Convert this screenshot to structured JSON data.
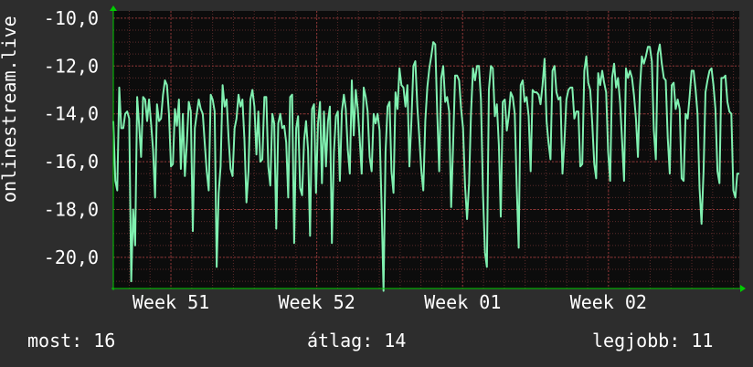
{
  "chart_data": {
    "type": "line",
    "ylabel": "onlinestream.live",
    "ylim": [
      -21.3,
      -9.7
    ],
    "yticks": [
      -10.0,
      -12.0,
      -14.0,
      -16.0,
      -18.0,
      -20.0
    ],
    "ytick_labels": [
      "-10,0",
      "-12,0",
      "-14,0",
      "-16,0",
      "-18,0",
      "-20,0"
    ],
    "xticks": [
      "Week 51",
      "Week 52",
      "Week 01",
      "Week 02"
    ],
    "grid": true,
    "colors": {
      "line": "#80f0b0",
      "background": "#0c0c0c",
      "grid": "#7a3030",
      "axis": "#00cc00"
    },
    "series": [
      {
        "values": [
          -14.3,
          -16.8,
          -17.2,
          -12.9,
          -14.6,
          -14.6,
          -14.0,
          -13.9,
          -14.2,
          -21.0,
          -18.0,
          -19.5,
          -13.3,
          -14.5,
          -15.8,
          -13.3,
          -13.4,
          -14.3,
          -13.4,
          -14.4,
          -15.5,
          -17.5,
          -13.6,
          -14.3,
          -14.2,
          -13.2,
          -12.6,
          -12.8,
          -14.0,
          -16.2,
          -16.1,
          -13.8,
          -14.5,
          -13.4,
          -16.3,
          -14.0,
          -16.6,
          -15.2,
          -13.5,
          -13.9,
          -18.9,
          -14.6,
          -14.0,
          -13.4,
          -13.8,
          -14.0,
          -15.2,
          -16.4,
          -17.2,
          -13.2,
          -13.4,
          -13.9,
          -20.4,
          -17.3,
          -16.2,
          -12.8,
          -13.7,
          -13.4,
          -15.0,
          -16.3,
          -16.6,
          -14.6,
          -14.2,
          -13.2,
          -13.7,
          -13.4,
          -15.1,
          -17.7,
          -16.4,
          -13.4,
          -13.0,
          -13.7,
          -15.7,
          -13.9,
          -16.0,
          -15.9,
          -13.3,
          -13.3,
          -16.2,
          -17.0,
          -14.0,
          -14.4,
          -18.8,
          -14.4,
          -14.0,
          -14.6,
          -14.5,
          -15.2,
          -17.5,
          -13.3,
          -13.2,
          -19.4,
          -14.6,
          -14.1,
          -17.1,
          -17.4,
          -15.1,
          -14.3,
          -15.5,
          -19.1,
          -13.8,
          -13.6,
          -17.3,
          -14.4,
          -13.5,
          -16.9,
          -13.9,
          -16.2,
          -14.3,
          -13.7,
          -19.4,
          -15.6,
          -14.1,
          -13.9,
          -16.8,
          -13.9,
          -13.2,
          -13.8,
          -15.5,
          -16.5,
          -12.6,
          -14.9,
          -13.0,
          -13.8,
          -15.1,
          -16.5,
          -12.9,
          -13.3,
          -13.9,
          -15.8,
          -16.4,
          -14.0,
          -14.4,
          -14.0,
          -14.7,
          -17.9,
          -21.4,
          -15.6,
          -13.7,
          -13.5,
          -16.4,
          -17.3,
          -13.1,
          -13.8,
          -12.1,
          -12.8,
          -12.9,
          -13.7,
          -12.8,
          -16.2,
          -14.3,
          -12.0,
          -11.8,
          -13.7,
          -15.0,
          -16.4,
          -17.2,
          -14.3,
          -12.9,
          -12.1,
          -11.6,
          -11.0,
          -11.1,
          -14.0,
          -16.4,
          -12.5,
          -12.0,
          -13.5,
          -13.3,
          -13.9,
          -17.9,
          -15.2,
          -12.4,
          -12.4,
          -12.6,
          -13.8,
          -14.6,
          -17.0,
          -18.4,
          -16.9,
          -14.0,
          -12.1,
          -12.6,
          -12.0,
          -12.0,
          -13.4,
          -17.3,
          -19.8,
          -20.4,
          -13.0,
          -12.0,
          -12.1,
          -14.1,
          -13.6,
          -15.3,
          -18.3,
          -13.5,
          -13.4,
          -14.7,
          -14.1,
          -13.1,
          -13.3,
          -14.0,
          -17.0,
          -19.6,
          -12.8,
          -12.6,
          -13.5,
          -13.3,
          -14.1,
          -16.4,
          -13.0,
          -13.1,
          -13.1,
          -13.2,
          -13.6,
          -12.8,
          -11.7,
          -14.3,
          -15.2,
          -15.9,
          -12.2,
          -12.0,
          -13.1,
          -13.4,
          -13.3,
          -16.5,
          -15.2,
          -13.4,
          -13.0,
          -12.9,
          -12.9,
          -14.2,
          -13.9,
          -13.9,
          -16.2,
          -16.1,
          -12.2,
          -11.6,
          -12.7,
          -13.0,
          -14.4,
          -16.1,
          -16.7,
          -12.3,
          -12.8,
          -12.2,
          -12.7,
          -13.1,
          -15.6,
          -16.8,
          -12.5,
          -11.9,
          -12.9,
          -12.5,
          -13.5,
          -15.1,
          -16.8,
          -12.1,
          -12.5,
          -12.2,
          -12.5,
          -13.2,
          -14.2,
          -15.8,
          -12.9,
          -11.6,
          -11.9,
          -11.6,
          -11.2,
          -11.2,
          -11.8,
          -14.7,
          -15.9,
          -11.5,
          -11.1,
          -11.9,
          -12.5,
          -12.6,
          -15.0,
          -16.5,
          -12.8,
          -12.7,
          -13.8,
          -13.4,
          -13.8,
          -16.7,
          -16.8,
          -14.0,
          -14.2,
          -13.3,
          -12.2,
          -12.2,
          -13.0,
          -14.0,
          -17.1,
          -18.6,
          -16.4,
          -13.1,
          -12.6,
          -12.2,
          -12.1,
          -12.8,
          -13.8,
          -16.4,
          -16.9,
          -12.5,
          -12.5,
          -12.4,
          -13.5,
          -13.9,
          -14.0,
          -17.2,
          -17.5,
          -16.5,
          -16.5
        ],
        "x_range": [
          0,
          1
        ],
        "x_tick_positions": [
          0.092,
          0.325,
          0.558,
          0.791
        ]
      }
    ]
  },
  "footer": {
    "now": "most: 16",
    "avg": "átlag: 14",
    "max": "legjobb: 11"
  }
}
